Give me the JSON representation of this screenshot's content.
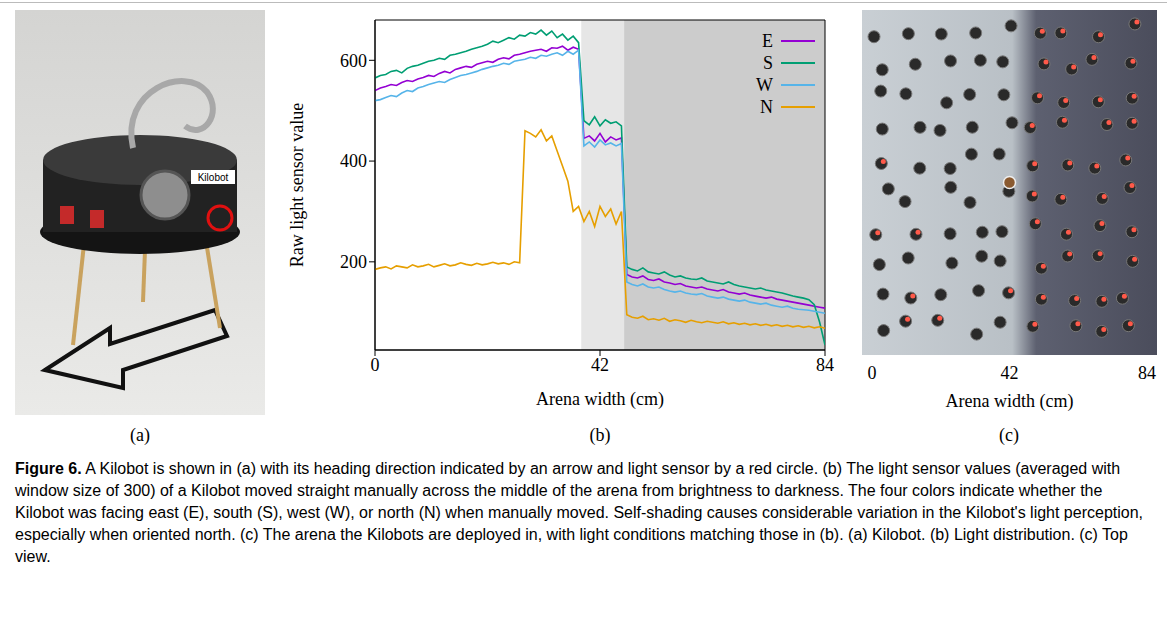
{
  "figure": {
    "label": "Figure 6.",
    "caption": "A Kilobot is shown in (a) with its heading direction indicated by an arrow and light sensor by a red circle. (b) The light sensor values (averaged with window size of 300) of a Kilobot moved straight manually across the middle of the arena from brightness to darkness. The four colors indicate whether the Kilobot was facing east (E), south (S), west (W), or north (N) when manually moved. Self-shading causes considerable variation in the Kilobot's light perception, especially when oriented north. (c) The arena the Kilobots are deployed in, with light conditions matching those in (b). (a) Kilobot. (b) Light distribution. (c) Top view.",
    "panels": [
      {
        "letter": "(a)",
        "robot_label": "Kilobot"
      },
      {
        "letter": "(b)"
      },
      {
        "letter": "(c)",
        "x_label": "Arena width (cm)",
        "xlim": [
          0,
          84
        ],
        "xticks": [
          0,
          42,
          84
        ]
      }
    ]
  },
  "chart_data": {
    "type": "line",
    "x_label": "Arena width (cm)",
    "y_label": "Raw light sensor value",
    "legend": "upper right",
    "xlim": [
      0,
      84
    ],
    "xticks": [
      0,
      42,
      84
    ],
    "ylim": [
      25,
      680
    ],
    "yticks": [
      200,
      400,
      600
    ],
    "regions": [
      {
        "x0": 38.5,
        "x1": 46.5,
        "color": "#e6e6e6"
      },
      {
        "x0": 46.5,
        "x1": 84,
        "color": "#cccccc"
      }
    ],
    "x": [
      0,
      1,
      2,
      3,
      4,
      5,
      6,
      7,
      8,
      9,
      10,
      11,
      12,
      13,
      14,
      15,
      16,
      17,
      18,
      19,
      20,
      21,
      22,
      23,
      24,
      25,
      26,
      27,
      28,
      29,
      30,
      31,
      32,
      33,
      34,
      35,
      36,
      37,
      38,
      39,
      40,
      41,
      42,
      43,
      44,
      45,
      46,
      47,
      48,
      49,
      50,
      51,
      52,
      53,
      54,
      55,
      56,
      57,
      58,
      59,
      60,
      61,
      62,
      63,
      64,
      65,
      66,
      67,
      68,
      69,
      70,
      71,
      72,
      73,
      74,
      75,
      76,
      77,
      78,
      79,
      80,
      81,
      82,
      83,
      84
    ],
    "series": [
      {
        "name": "E",
        "color": "#9400d3",
        "values": [
          540,
          545,
          548,
          552,
          550,
          556,
          560,
          558,
          563,
          566,
          570,
          568,
          574,
          578,
          575,
          582,
          585,
          588,
          586,
          592,
          595,
          598,
          596,
          602,
          605,
          603,
          610,
          612,
          615,
          618,
          620,
          622,
          618,
          625,
          624,
          628,
          620,
          626,
          622,
          445,
          450,
          440,
          455,
          438,
          448,
          442,
          446,
          175,
          170,
          168,
          172,
          165,
          163,
          166,
          160,
          158,
          155,
          157,
          152,
          150,
          148,
          150,
          146,
          144,
          142,
          145,
          140,
          138,
          136,
          138,
          134,
          132,
          130,
          128,
          130,
          126,
          124,
          122,
          120,
          118,
          116,
          114,
          112,
          110,
          108
        ]
      },
      {
        "name": "S",
        "color": "#009e73",
        "values": [
          565,
          570,
          572,
          578,
          580,
          575,
          584,
          588,
          590,
          594,
          598,
          600,
          604,
          602,
          610,
          612,
          615,
          618,
          622,
          625,
          628,
          632,
          638,
          635,
          640,
          645,
          642,
          650,
          648,
          655,
          652,
          660,
          650,
          658,
          645,
          652,
          640,
          648,
          635,
          480,
          472,
          488,
          470,
          482,
          475,
          478,
          470,
          190,
          185,
          182,
          188,
          180,
          178,
          176,
          180,
          174,
          170,
          172,
          168,
          166,
          165,
          168,
          162,
          160,
          158,
          156,
          160,
          155,
          152,
          150,
          148,
          146,
          148,
          144,
          142,
          140,
          138,
          135,
          132,
          130,
          128,
          125,
          115,
          80,
          35
        ]
      },
      {
        "name": "W",
        "color": "#56b4e9",
        "values": [
          520,
          522,
          526,
          530,
          528,
          535,
          540,
          538,
          545,
          548,
          552,
          555,
          558,
          556,
          562,
          566,
          570,
          572,
          575,
          578,
          582,
          585,
          588,
          590,
          594,
          592,
          598,
          600,
          602,
          606,
          604,
          610,
          608,
          612,
          615,
          610,
          618,
          612,
          620,
          430,
          438,
          428,
          442,
          432,
          436,
          430,
          435,
          160,
          155,
          152,
          156,
          150,
          148,
          150,
          145,
          142,
          140,
          142,
          138,
          136,
          135,
          137,
          132,
          130,
          128,
          130,
          126,
          124,
          122,
          124,
          120,
          118,
          116,
          118,
          114,
          112,
          110,
          112,
          108,
          106,
          105,
          104,
          102,
          100,
          98
        ]
      },
      {
        "name": "N",
        "color": "#e69f00",
        "values": [
          185,
          188,
          190,
          186,
          192,
          190,
          188,
          194,
          190,
          192,
          195,
          190,
          193,
          196,
          192,
          194,
          198,
          195,
          193,
          197,
          194,
          196,
          199,
          196,
          198,
          195,
          200,
          198,
          460,
          455,
          448,
          462,
          440,
          450,
          420,
          390,
          360,
          300,
          310,
          280,
          300,
          270,
          310,
          290,
          305,
          275,
          300,
          95,
          90,
          88,
          92,
          85,
          87,
          84,
          88,
          82,
          85,
          83,
          80,
          84,
          81,
          79,
          82,
          80,
          78,
          81,
          77,
          79,
          76,
          78,
          75,
          77,
          74,
          76,
          73,
          75,
          72,
          74,
          71,
          73,
          70,
          72,
          69,
          71,
          68
        ]
      }
    ]
  }
}
